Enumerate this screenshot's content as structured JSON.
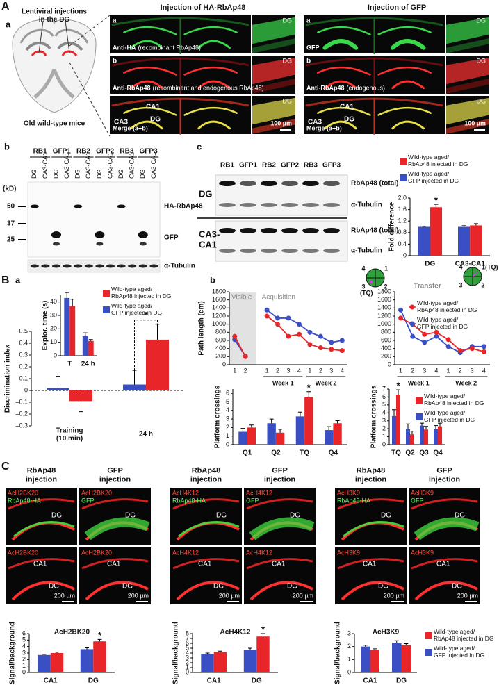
{
  "figure": {
    "panel_labels": {
      "A": "A",
      "B": "B",
      "C": "C"
    },
    "A": {
      "a_label": "a",
      "b_label": "b",
      "c_label": "c",
      "injection": "Lentiviral injections\nin the DG",
      "mice": "Old wild-type mice",
      "columns": [
        {
          "title": "Injection of HA-RbAp48",
          "rows": [
            {
              "letter": "a",
              "stain": "Anti-HA",
              "note": "(recombinant RbAp48)",
              "region": "DG"
            },
            {
              "letter": "b",
              "stain": "Anti-RbAp48",
              "note": "(recombinant and endogenous RbAp48)",
              "region": "DG"
            },
            {
              "stain": "Merge (a+b)",
              "region": "DG",
              "areas": [
                "CA1",
                "CA3",
                "DG"
              ],
              "scale": "100 µm"
            }
          ]
        },
        {
          "title": "Injection of GFP",
          "rows": [
            {
              "letter": "a",
              "stain": "GFP",
              "region": "DG"
            },
            {
              "letter": "b",
              "stain": "Anti-RbAp48",
              "note": "(endogenous)",
              "region": "DG"
            },
            {
              "stain": "Merge (a+b)",
              "region": "DG",
              "areas": [
                "CA1",
                "CA3",
                "DG"
              ],
              "scale": "100 µm"
            }
          ]
        }
      ],
      "blot_b": {
        "lanes": [
          "RB1",
          "GFP1",
          "RB2",
          "GFP2",
          "RB3",
          "GFP3"
        ],
        "sublanes": [
          "DG",
          "CA3-CA1"
        ],
        "unit": "(kD)",
        "markers": [
          "50",
          "37",
          "25"
        ],
        "bands": [
          "HA-RbAp48",
          "GFP",
          "α-Tubulin"
        ]
      },
      "blot_c": {
        "lanes": [
          "RB1",
          "GFP1",
          "RB2",
          "GFP2",
          "RB3",
          "GFP3"
        ],
        "regions": [
          "DG",
          "CA3-\nCA1"
        ],
        "bands": [
          "RbAp48 (total)",
          "α-Tubulin"
        ]
      }
    },
    "B": {
      "a_label": "a",
      "b_label": "b",
      "pools": [
        {
          "quadrants": [
            "4",
            "1",
            "3",
            "2"
          ],
          "target": "(TQ)"
        },
        {
          "quadrants": [
            "4",
            "1(TQ)",
            "3",
            "2"
          ]
        }
      ]
    },
    "C": {
      "groups": [
        {
          "stain": "AcH2BK20",
          "columns": [
            {
              "title": "RbAp48\ninjection",
              "marker": "RbAp48-HA"
            },
            {
              "title": "GFP\ninjection",
              "marker": "GFP"
            }
          ],
          "top_region": "DG",
          "bottom_regions": [
            "CA1",
            "DG"
          ],
          "scale": "200 µm"
        },
        {
          "stain": "AcH4K12",
          "columns": [
            {
              "title": "RbAp48\ninjection",
              "marker": "RbAp48-HA"
            },
            {
              "title": "GFP\ninjection",
              "marker": "GFP"
            }
          ],
          "top_region": "DG",
          "bottom_regions": [
            "CA1",
            "DG"
          ],
          "scale": "200 µm"
        },
        {
          "stain": "AcH3K9",
          "columns": [
            {
              "title": "RbAp48\ninjection",
              "marker": "RbAp48-HA"
            },
            {
              "title": "GFP\ninjection",
              "marker": "GFP"
            }
          ],
          "top_region": "DG",
          "bottom_regions": [
            "CA1",
            "DG"
          ],
          "scale": "200 µm"
        }
      ]
    }
  },
  "chart_data": [
    {
      "type": "bar",
      "ylabel": "Fold difference",
      "categories": [
        "DG",
        "CA3-CA1"
      ],
      "series": [
        {
          "name": "Wild-type aged/\nGFP injected in DG",
          "color": "#3a4fc4",
          "values": [
            1.0,
            1.0
          ],
          "errors": [
            0.02,
            0.04
          ]
        },
        {
          "name": "Wild-type aged/\nRbAp48 injected in DG",
          "color": "#e8262a",
          "values": [
            1.68,
            1.05
          ],
          "errors": [
            0.1,
            0.06
          ]
        }
      ],
      "ylim": [
        0,
        2
      ],
      "yticks": [
        0,
        0.4,
        0.8,
        1.2,
        1.6,
        {
          "value": 2,
          "label": "2.0"
        }
      ],
      "annotations": [
        "*"
      ]
    },
    {
      "type": "bar",
      "ylabel": "Explor. time (s)",
      "categories": [
        "T",
        "24 h"
      ],
      "series": [
        {
          "color": "#3a4fc4",
          "values": [
            43,
            15
          ],
          "errors": [
            4,
            2
          ]
        },
        {
          "color": "#e8262a",
          "values": [
            37,
            11
          ],
          "errors": [
            5,
            1
          ]
        }
      ],
      "ylim": [
        0,
        45
      ],
      "yticks": [
        0,
        10,
        20,
        30,
        40
      ]
    },
    {
      "type": "bar",
      "ylabel": "Discrimination index",
      "categories": [
        "Training\n(10 min)",
        "24 h"
      ],
      "series": [
        {
          "name": "Wild-type aged/\nGFP injected in DG",
          "color": "#3a4fc4",
          "values": [
            0.02,
            0.05
          ],
          "errors": [
            0.1,
            0.12
          ]
        },
        {
          "name": "Wild-type aged/\nRbAp48 injected in DG",
          "color": "#e8262a",
          "values": [
            -0.09,
            0.43
          ],
          "errors": [
            0.09,
            0.13
          ]
        }
      ],
      "ylim": [
        -0.3,
        0.5
      ],
      "yticks": [
        {
          "value": -0.3,
          "label": "–0.3"
        },
        {
          "value": -0.2,
          "label": "–0.2"
        },
        {
          "value": -0.1,
          "label": "–0.1"
        },
        0,
        0.1,
        0.2,
        0.3,
        0.4,
        0.5
      ],
      "annotations": [
        "*"
      ]
    },
    {
      "type": "line",
      "ylabel": "Path length (cm)",
      "visible_label": "Visible",
      "phase_label": "Acquisition",
      "week_labels": [
        "Week 1",
        "Week 2"
      ],
      "categories": [
        "1",
        "2",
        null,
        "1",
        "2",
        "3",
        "4",
        "1",
        "2",
        "3",
        "4"
      ],
      "series": [
        {
          "color": "#3a4fc4",
          "values": [
            620,
            210,
            null,
            1350,
            1150,
            1150,
            1000,
            800,
            700,
            550,
            600
          ]
        },
        {
          "color": "#e8262a",
          "values": [
            700,
            200,
            null,
            1200,
            1000,
            700,
            750,
            500,
            420,
            380,
            350
          ]
        }
      ],
      "ylim": [
        0,
        1800
      ],
      "yticks": [
        0,
        200,
        400,
        600,
        800,
        1000,
        1200,
        1400,
        1600,
        1800
      ]
    },
    {
      "type": "line",
      "title": "Transfer",
      "week_labels": [
        "Week 1",
        "Week 2"
      ],
      "categories": [
        "1",
        "2",
        "3",
        "4",
        "1",
        "2",
        "3",
        "4"
      ],
      "series": [
        {
          "name": "Wild-type aged/\nGFP injected in DG",
          "color": "#3a4fc4",
          "values": [
            1350,
            700,
            550,
            700,
            450,
            300,
            450,
            450
          ]
        },
        {
          "name": "Wild-type aged/\nRbAp48 injected in DG",
          "color": "#e8262a",
          "values": [
            1150,
            1000,
            750,
            800,
            620,
            350,
            400,
            320
          ]
        }
      ],
      "ylim": [
        0,
        1800
      ],
      "yticks": [
        0,
        200,
        400,
        600,
        800,
        1000,
        1200,
        1400,
        1600,
        1800
      ]
    },
    {
      "type": "bar",
      "ylabel": "Platform crossings",
      "categories": [
        "Q1",
        "Q2",
        "TQ",
        "Q4"
      ],
      "series": [
        {
          "color": "#3a4fc4",
          "values": [
            1.5,
            2.5,
            3.3,
            1.7
          ],
          "errors": [
            0.4,
            0.5,
            0.5,
            0.4
          ]
        },
        {
          "color": "#e8262a",
          "values": [
            2.0,
            1.4,
            5.6,
            2.5
          ],
          "errors": [
            0.3,
            0.4,
            0.6,
            0.3
          ]
        }
      ],
      "ylim": [
        0,
        6.5
      ],
      "yticks": [
        0,
        1,
        2,
        3,
        4,
        5,
        6
      ],
      "annotations": [
        "*"
      ]
    },
    {
      "type": "bar",
      "ylabel": "Platform crossings",
      "categories": [
        "TQ",
        "Q2",
        "Q3",
        "Q4"
      ],
      "series": [
        {
          "name": "Wild-type aged/\nGFP injected in DG",
          "color": "#3a4fc4",
          "values": [
            3.6,
            2.0,
            2.4,
            2.0
          ],
          "errors": [
            0.8,
            0.6,
            0.3,
            0.4
          ]
        },
        {
          "name": "Wild-type aged/\nRbAp48 injected in DG",
          "color": "#e8262a",
          "values": [
            6.3,
            1.3,
            1.9,
            2.3
          ],
          "errors": [
            0.6,
            0.4,
            0.4,
            0.4
          ]
        }
      ],
      "ylim": [
        0,
        7
      ],
      "yticks": [
        0,
        1,
        2,
        3,
        4,
        5,
        6,
        7
      ],
      "annotations": [
        "*"
      ]
    },
    {
      "type": "bar",
      "title": "AcH2BK20",
      "ylabel": "Signal/background",
      "categories": [
        "CA1",
        "DG"
      ],
      "series": [
        {
          "color": "#3a4fc4",
          "values": [
            2.7,
            3.6
          ],
          "errors": [
            0.1,
            0.2
          ]
        },
        {
          "color": "#e8262a",
          "values": [
            3.0,
            4.8
          ],
          "errors": [
            0.15,
            0.3
          ]
        }
      ],
      "ylim": [
        0,
        6
      ],
      "yticks": [
        0,
        1,
        2,
        3,
        4,
        5,
        6
      ],
      "annotations": [
        "*"
      ]
    },
    {
      "type": "bar",
      "title": "AcH4K12",
      "ylabel": "Signal/background",
      "categories": [
        "CA1",
        "DG"
      ],
      "series": [
        {
          "color": "#3a4fc4",
          "values": [
            3.8,
            4.7
          ],
          "errors": [
            0.2,
            0.3
          ]
        },
        {
          "color": "#e8262a",
          "values": [
            4.2,
            7.4
          ],
          "errors": [
            0.2,
            0.6
          ]
        }
      ],
      "ylim": [
        0,
        8
      ],
      "yticks": [
        0,
        1,
        2,
        3,
        4,
        5,
        6,
        7,
        8
      ],
      "annotations": [
        "*"
      ]
    },
    {
      "type": "bar",
      "title": "AcH3K9",
      "ylabel": "Signal/background",
      "categories": [
        "CA1",
        "DG"
      ],
      "series": [
        {
          "name": "Wild-type aged/\nGFP injected in DG",
          "color": "#3a4fc4",
          "values": [
            2.0,
            2.3
          ],
          "errors": [
            0.1,
            0.15
          ]
        },
        {
          "name": "Wild-type aged/\nRbAp48 injected in DG",
          "color": "#e8262a",
          "values": [
            1.75,
            2.1
          ],
          "errors": [
            0.08,
            0.12
          ]
        }
      ],
      "ylim": [
        0,
        3
      ],
      "yticks": [
        0,
        1,
        2,
        3
      ]
    }
  ]
}
